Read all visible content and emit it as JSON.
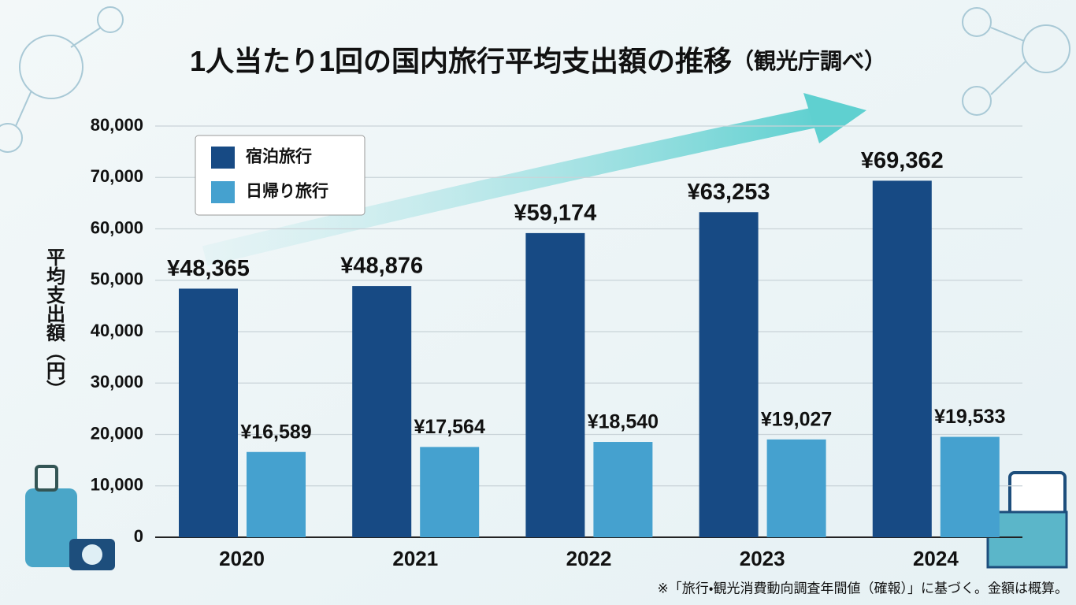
{
  "chart_data": {
    "type": "bar",
    "title": "1人当たり1回の国内旅行平均支出額の推移",
    "subtitle": "（観光庁調べ）",
    "y_label": "平均支出額（円）",
    "note": "※「旅行・観光消費動向調査年間値（確報）」に基づく。金額は概算。",
    "categories": [
      "2020",
      "2021",
      "2022",
      "2023",
      "2024"
    ],
    "series": [
      {
        "name": "宿泊旅行",
        "color": "#174a84",
        "values": [
          48365,
          48876,
          59174,
          63253,
          69362
        ],
        "value_labels": [
          "¥48,365",
          "¥48,876",
          "¥59,174",
          "¥63,253",
          "¥69,362"
        ]
      },
      {
        "name": "日帰り旅行",
        "color": "#45a1cf",
        "values": [
          16589,
          17564,
          18540,
          19027,
          19533
        ],
        "value_labels": [
          "¥16,589",
          "¥17,564",
          "¥18,540",
          "¥19,027",
          "¥19,533"
        ]
      }
    ],
    "ylim": [
      0,
      80000
    ],
    "yticks": [
      0,
      {
        "value": 10000,
        "label": "10,000"
      },
      {
        "value": 20000,
        "label": "20,000"
      },
      {
        "value": 30000,
        "label": "30,000"
      },
      {
        "value": 40000,
        "label": "40,000"
      },
      {
        "value": 50000,
        "label": "50,000"
      },
      {
        "value": 60000,
        "label": "60,000"
      },
      {
        "value": 70000,
        "label": "70,000"
      },
      {
        "value": 80000,
        "label": "80,000"
      }
    ],
    "grid": true
  }
}
